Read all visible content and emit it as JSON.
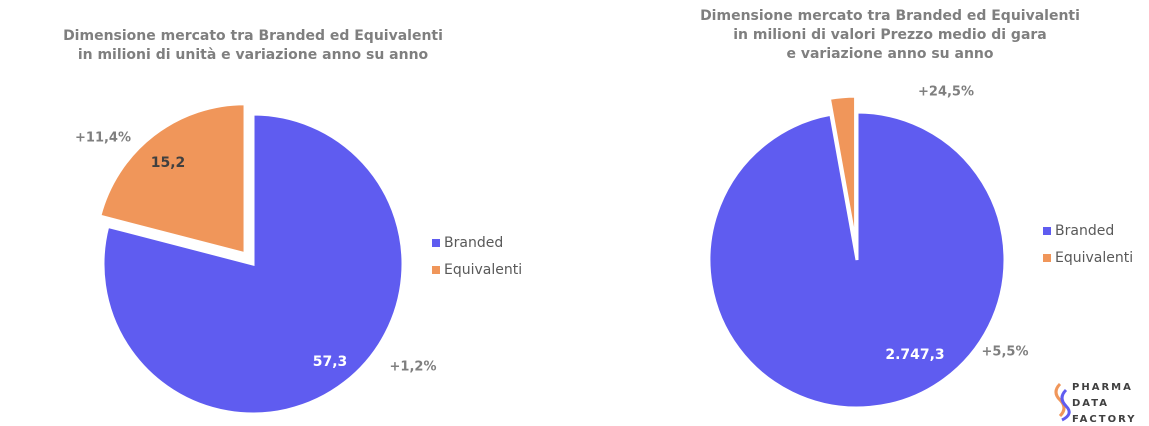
{
  "chart_data": [
    {
      "type": "pie",
      "title": [
        "Dimensione mercato tra Branded ed Equivalenti",
        "in milioni di unità e variazione anno su anno"
      ],
      "categories": [
        "Branded",
        "Equivalenti"
      ],
      "values": [
        57.3,
        15.2
      ],
      "value_labels": [
        "57,3",
        "15,2"
      ],
      "change_labels": [
        "+1,2%",
        "+11,4%"
      ],
      "colors": [
        "#5f5cf0",
        "#f0965a"
      ]
    },
    {
      "type": "pie",
      "title": [
        "Dimensione mercato tra Branded ed Equivalenti",
        "in milioni di valori Prezzo medio di gara",
        "e variazione anno su anno"
      ],
      "categories": [
        "Branded",
        "Equivalenti"
      ],
      "values": [
        2747.3,
        80
      ],
      "value_labels": [
        "2.747,3",
        null
      ],
      "change_labels": [
        "+5,5%",
        "+24,5%"
      ],
      "colors": [
        "#5f5cf0",
        "#f0965a"
      ]
    }
  ],
  "logo": [
    "PHARMA",
    "DATA",
    "FACTORY"
  ]
}
